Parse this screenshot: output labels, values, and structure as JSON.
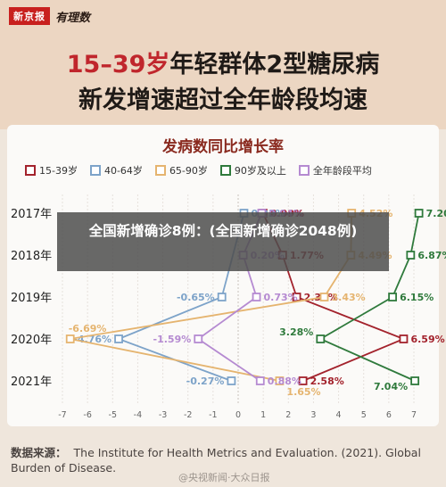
{
  "brand": {
    "paper": "新京报",
    "column": "有理数"
  },
  "header": {
    "title_line1_accent": "15–39岁",
    "title_line1_rest": "年轻群体2型糖尿病",
    "title_line2": "新发增速超过全年龄段均速"
  },
  "overlay_caption": "全国新增确诊8例：(全国新增确诊2048例)",
  "source": {
    "label": "数据来源：",
    "text": "The Institute for Health Metrics and Evaluation. (2021). Global Burden of Disease."
  },
  "watermark": "@央视新闻·大众日报",
  "chart_data": {
    "type": "line",
    "title": "发病数同比增长率",
    "orientation": "horizontal",
    "categories": [
      "2017年",
      "2018年",
      "2019年",
      "2020年",
      "2021年"
    ],
    "xlim": [
      -7,
      7
    ],
    "xticks": [
      -7,
      -6,
      -5,
      -4,
      -3,
      -2,
      -1,
      0,
      1,
      2,
      3,
      4,
      5,
      6,
      7
    ],
    "grid": "vertical",
    "legend_position": "top",
    "series": [
      {
        "name": "15-39岁",
        "color": "#a3222c",
        "values": [
          0.99,
          1.77,
          2.33,
          6.59,
          2.58
        ],
        "labels": [
          "0.99%",
          "1.77%",
          "2.33%",
          "6.59%",
          "2.58%"
        ]
      },
      {
        "name": "40-64岁",
        "color": "#7da3c9",
        "values": [
          0.23,
          null,
          -0.65,
          -4.76,
          -0.27
        ],
        "labels": [
          "0.23%",
          "",
          "-0.65%",
          "-4.76%",
          "-0.27%"
        ]
      },
      {
        "name": "65-90岁",
        "color": "#e5b46f",
        "values": [
          4.52,
          4.49,
          3.43,
          -6.69,
          1.65
        ],
        "labels": [
          "4.52%",
          "4.49%",
          "3.43%",
          "-6.69%",
          "1.65%"
        ]
      },
      {
        "name": "90岁及以上",
        "color": "#2f7a3c",
        "values": [
          7.2,
          6.87,
          6.15,
          3.28,
          7.04
        ],
        "labels": [
          "7.20%",
          "6.87%",
          "6.15%",
          "3.28%",
          "7.04%"
        ]
      },
      {
        "name": "全年龄段平均",
        "color": "#b58ad1",
        "values": [
          0.94,
          0.2,
          0.73,
          -1.59,
          0.88
        ],
        "labels": [
          "0.94%",
          "0.20%",
          "0.73%",
          "-1.59%",
          "0.88%"
        ]
      }
    ]
  }
}
